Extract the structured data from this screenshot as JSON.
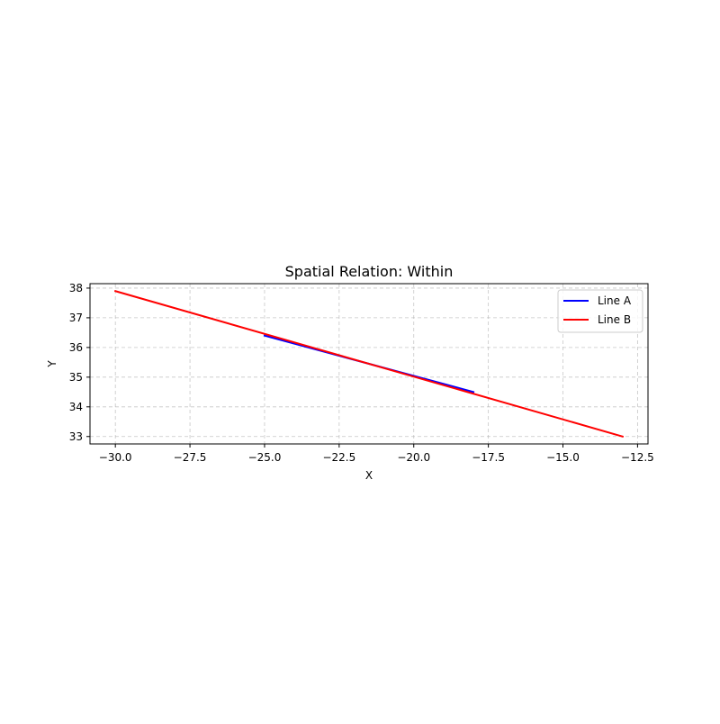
{
  "chart_data": {
    "type": "line",
    "title": "Spatial Relation: Within",
    "xlabel": "X",
    "ylabel": "Y",
    "xlim": [
      -30.85,
      -12.15
    ],
    "ylim": [
      32.75,
      38.15
    ],
    "xticks": [
      -30.0,
      -27.5,
      -25.0,
      -22.5,
      -20.0,
      -17.5,
      -15.0,
      -12.5
    ],
    "xtick_labels": [
      "−30.0",
      "−27.5",
      "−25.0",
      "−22.5",
      "−20.0",
      "−17.5",
      "−15.0",
      "−12.5"
    ],
    "yticks": [
      33,
      34,
      35,
      36,
      37,
      38
    ],
    "ytick_labels": [
      "33",
      "34",
      "35",
      "36",
      "37",
      "38"
    ],
    "grid": true,
    "legend_position": "top-right",
    "series": [
      {
        "name": "Line A",
        "color": "#0000ff",
        "x": [
          -25.0,
          -18.0
        ],
        "y": [
          36.4,
          34.5
        ]
      },
      {
        "name": "Line B",
        "color": "#ff0000",
        "x": [
          -30.0,
          -13.0
        ],
        "y": [
          37.9,
          33.0
        ]
      }
    ]
  }
}
